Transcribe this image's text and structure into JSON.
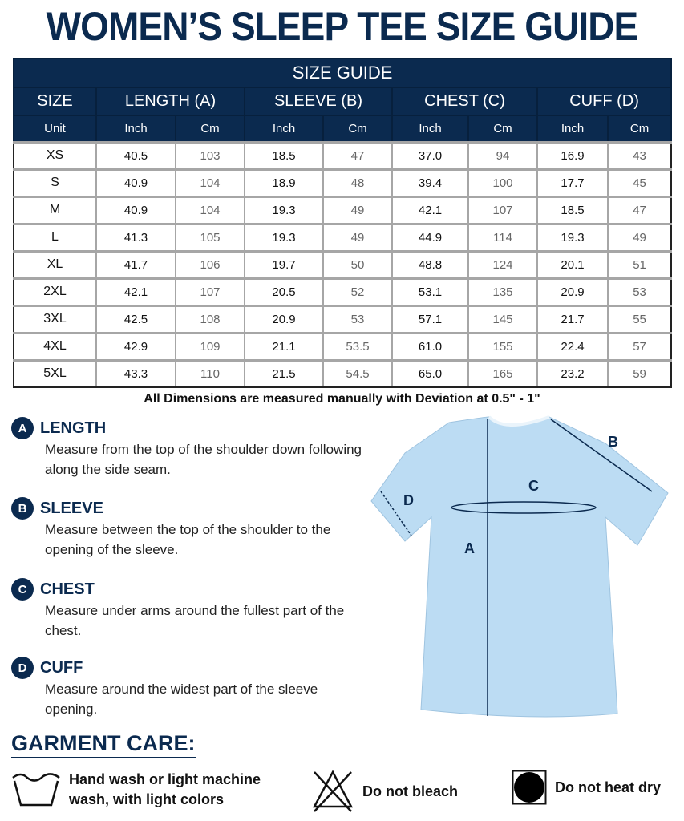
{
  "title": "WOMEN’S SLEEP TEE SIZE GUIDE",
  "table": {
    "caption": "SIZE GUIDE",
    "headers": [
      "SIZE",
      "LENGTH (A)",
      "SLEEVE (B)",
      "CHEST (C)",
      "CUFF (D)"
    ],
    "unit_label": "Unit",
    "units": [
      "Inch",
      "Cm"
    ],
    "rows": [
      [
        "XS",
        "40.5",
        "103",
        "18.5",
        "47",
        "37.0",
        "94",
        "16.9",
        "43"
      ],
      [
        "S",
        "40.9",
        "104",
        "18.9",
        "48",
        "39.4",
        "100",
        "17.7",
        "45"
      ],
      [
        "M",
        "40.9",
        "104",
        "19.3",
        "49",
        "42.1",
        "107",
        "18.5",
        "47"
      ],
      [
        "L",
        "41.3",
        "105",
        "19.3",
        "49",
        "44.9",
        "114",
        "19.3",
        "49"
      ],
      [
        "XL",
        "41.7",
        "106",
        "19.7",
        "50",
        "48.8",
        "124",
        "20.1",
        "51"
      ],
      [
        "2XL",
        "42.1",
        "107",
        "20.5",
        "52",
        "53.1",
        "135",
        "20.9",
        "53"
      ],
      [
        "3XL",
        "42.5",
        "108",
        "20.9",
        "53",
        "57.1",
        "145",
        "21.7",
        "55"
      ],
      [
        "4XL",
        "42.9",
        "109",
        "21.1",
        "53.5",
        "61.0",
        "155",
        "22.4",
        "57"
      ],
      [
        "5XL",
        "43.3",
        "110",
        "21.5",
        "54.5",
        "65.0",
        "165",
        "23.2",
        "59"
      ]
    ]
  },
  "note": "All Dimensions are measured manually with Deviation at 0.5\" - 1\"",
  "measurements": [
    {
      "letter": "A",
      "label": "LENGTH",
      "desc": "Measure from the top of  the shoulder down following along the side seam."
    },
    {
      "letter": "B",
      "label": "SLEEVE",
      "desc": "Measure between the top of  the shoulder to the opening of the sleeve."
    },
    {
      "letter": "C",
      "label": "CHEST",
      "desc": "Measure under arms around the fullest part of the chest."
    },
    {
      "letter": "D",
      "label": "CUFF",
      "desc": "Measure around the widest part of the sleeve opening."
    }
  ],
  "diagram": {
    "labels": [
      "A",
      "B",
      "C",
      "D"
    ],
    "shirt_color": "#bcdcf3"
  },
  "care": {
    "title": "GARMENT CARE:",
    "items": [
      {
        "icon": "hand-wash-icon",
        "text": "Hand wash or light machine wash, with light colors"
      },
      {
        "icon": "no-bleach-icon",
        "text": "Do not bleach"
      },
      {
        "icon": "no-tumble-dry-icon",
        "text": "Do not heat dry"
      }
    ]
  },
  "colors": {
    "navy": "#0b2a4f"
  }
}
